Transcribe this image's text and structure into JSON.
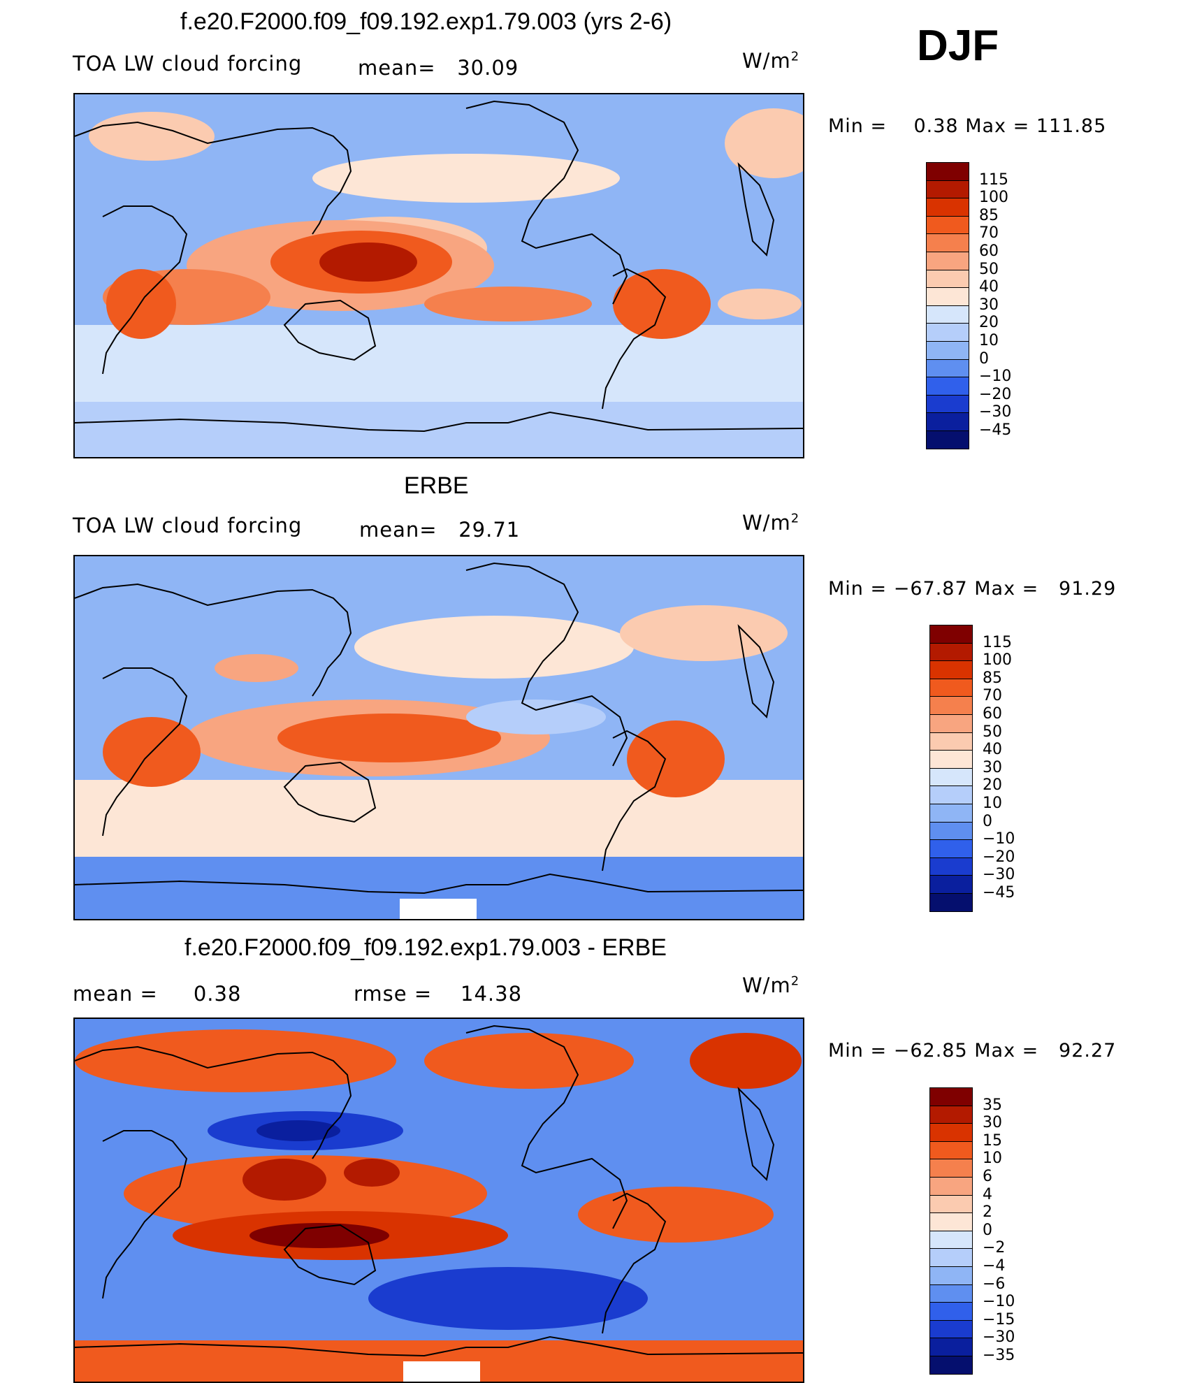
{
  "season": "DJF",
  "panels": [
    {
      "id": "model",
      "title": "f.e20.F2000.f09_f09.192.exp1.79.003 (yrs 2-6)",
      "left_label": "TOA LW cloud forcing",
      "stat1_label": "mean=",
      "stat1_value": "30.09",
      "stat2_label": "",
      "stat2_value": "",
      "units": "W/m",
      "units_sup": "2",
      "min_label": "Min  =",
      "min_value": "0.38",
      "max_label": "Max  =",
      "max_value": "111.85",
      "colorbar_labels": [
        "115",
        "100",
        "85",
        "70",
        "60",
        "50",
        "40",
        "30",
        "20",
        "10",
        "0",
        "−10",
        "−20",
        "−30",
        "−45"
      ]
    },
    {
      "id": "obs",
      "title": "ERBE",
      "left_label": "TOA LW cloud forcing",
      "stat1_label": "mean=",
      "stat1_value": "29.71",
      "stat2_label": "",
      "stat2_value": "",
      "units": "W/m",
      "units_sup": "2",
      "min_label": "Min  =",
      "min_value": "−67.87",
      "max_label": "Max  =",
      "max_value": "91.29",
      "colorbar_labels": [
        "115",
        "100",
        "85",
        "70",
        "60",
        "50",
        "40",
        "30",
        "20",
        "10",
        "0",
        "−10",
        "−20",
        "−30",
        "−45"
      ]
    },
    {
      "id": "diff",
      "title": "f.e20.F2000.f09_f09.192.exp1.79.003 - ERBE",
      "left_label": "mean  =",
      "stat1_label": "",
      "stat1_value": "0.38",
      "stat2_label": "rmse  =",
      "stat2_value": "14.38",
      "units": "W/m",
      "units_sup": "2",
      "min_label": "Min  =",
      "min_value": "−62.85",
      "max_label": "Max  =",
      "max_value": "92.27",
      "colorbar_labels": [
        "35",
        "30",
        "15",
        "10",
        "6",
        "4",
        "2",
        "0",
        "−2",
        "−4",
        "−6",
        "−10",
        "−15",
        "−30",
        "−35"
      ]
    }
  ],
  "colors": {
    "colorbar": [
      "#7f0000",
      "#b31a00",
      "#d93300",
      "#f05a1e",
      "#f5804d",
      "#f8a580",
      "#fbcbb0",
      "#fde6d6",
      "#d6e6fb",
      "#b5cefa",
      "#8fb5f5",
      "#5f8ff0",
      "#3060eb",
      "#1a3ccf",
      "#0a1f9e",
      "#050f6e"
    ],
    "land_outline": "#000000"
  }
}
